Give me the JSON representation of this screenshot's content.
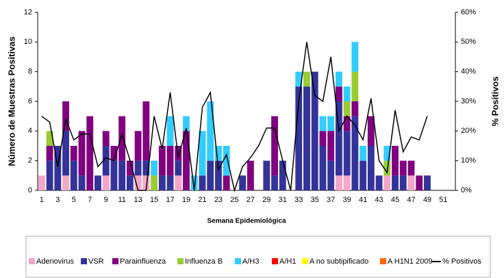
{
  "chart_data": {
    "type": "bar",
    "x_label": "Semana Epidemiológica",
    "y_label": "Número de Muestras Positivas",
    "y2_label": "% Positivos",
    "categories": [
      1,
      null,
      3,
      null,
      5,
      null,
      7,
      null,
      9,
      null,
      11,
      null,
      13,
      null,
      15,
      null,
      17,
      null,
      19,
      null,
      21,
      null,
      23,
      null,
      25,
      null,
      27,
      null,
      29,
      null,
      31,
      null,
      33,
      null,
      35,
      null,
      37,
      null,
      39,
      null,
      41,
      null,
      43,
      null,
      45,
      null,
      47,
      null,
      49,
      null,
      51,
      null
    ],
    "ylim": [
      0,
      12
    ],
    "yticks": [
      0,
      2,
      4,
      6,
      8,
      10,
      12
    ],
    "y2lim": [
      0,
      60
    ],
    "y2ticks": [
      {
        "value": 0,
        "label": "0%"
      },
      {
        "value": 10,
        "label": "10%"
      },
      {
        "value": 20,
        "label": "20%"
      },
      {
        "value": 30,
        "label": "30%"
      },
      {
        "value": 40,
        "label": "40%"
      },
      {
        "value": 50,
        "label": "50%"
      },
      {
        "value": 60,
        "label": "60%"
      }
    ],
    "legend": "bottom",
    "series": [
      {
        "name": "Adenovirus",
        "color": "#f4a6c8",
        "values": [
          1,
          0,
          0,
          1,
          0,
          0,
          0,
          0,
          1,
          0,
          0,
          0,
          1,
          1,
          0,
          0,
          0,
          1,
          0,
          0,
          0,
          0,
          0,
          0,
          0,
          0,
          0,
          0,
          0,
          0,
          0,
          0,
          0,
          0,
          0,
          0,
          0,
          1,
          1,
          0,
          0,
          0,
          0,
          1,
          0,
          0,
          1,
          0,
          0,
          0,
          0,
          0
        ]
      },
      {
        "name": "VSR",
        "color": "#33339a",
        "values": [
          0,
          2,
          3,
          3,
          2,
          1,
          0,
          1,
          2,
          2,
          2,
          1,
          1,
          1,
          0,
          1,
          1,
          1,
          0,
          0,
          1,
          2,
          2,
          0,
          0,
          1,
          0,
          0,
          2,
          1,
          2,
          0,
          7,
          7,
          8,
          3,
          2,
          5,
          3,
          5,
          2,
          3,
          1,
          0,
          1,
          1,
          0,
          0,
          1,
          0,
          0,
          0
        ]
      },
      {
        "name": "Parainfluenza",
        "color": "#800080",
        "values": [
          0,
          1,
          0,
          2,
          1,
          3,
          5,
          0,
          1,
          1,
          3,
          1,
          2,
          4,
          0,
          2,
          2,
          1,
          4,
          0,
          0,
          0,
          0,
          1,
          0,
          0,
          2,
          0,
          0,
          4,
          0,
          0,
          0,
          0,
          0,
          1,
          2,
          1,
          1,
          1,
          0,
          2,
          0,
          0,
          2,
          1,
          1,
          1,
          0,
          0,
          0,
          0
        ]
      },
      {
        "name": "Influenza  B",
        "color": "#99cc33",
        "values": [
          0,
          1,
          0,
          0,
          0,
          0,
          0,
          0,
          0,
          0,
          0,
          0,
          0,
          0,
          1,
          0,
          0,
          0,
          0,
          0,
          0,
          0,
          0,
          0,
          0,
          0,
          0,
          0,
          0,
          0,
          0,
          0,
          0,
          1,
          0,
          0,
          0,
          0,
          1,
          2,
          0,
          0,
          0,
          1,
          0,
          0,
          0,
          0,
          0,
          0,
          0,
          0
        ]
      },
      {
        "name": "A/H3",
        "color": "#33ccff",
        "values": [
          0,
          0,
          0,
          0,
          0,
          0,
          0,
          0,
          0,
          0,
          0,
          0,
          0,
          0,
          1,
          0,
          2,
          0,
          1,
          1,
          3,
          4,
          1,
          2,
          0,
          0,
          0,
          0,
          0,
          0,
          0,
          0,
          1,
          0,
          0,
          1,
          1,
          1,
          1,
          2,
          1,
          0,
          0,
          1,
          0,
          0,
          0,
          0,
          0,
          0,
          0,
          0
        ]
      },
      {
        "name": "A/H1",
        "color": "#ff0000",
        "values": [
          0,
          0,
          0,
          0,
          0,
          0,
          0,
          0,
          0,
          0,
          0,
          0,
          0,
          0,
          0,
          0,
          0,
          0,
          0,
          0,
          0,
          0,
          0,
          0,
          0,
          0,
          0,
          0,
          0,
          0,
          0,
          0,
          0,
          0,
          0,
          0,
          0,
          0,
          0,
          0,
          0,
          0,
          0,
          0,
          0,
          0,
          0,
          0,
          0,
          0,
          0,
          0
        ]
      },
      {
        "name": "A no subtipificado",
        "color": "#ffff00",
        "values": [
          0,
          0,
          0,
          0,
          0,
          0,
          0,
          0,
          0,
          0,
          0,
          0,
          0,
          0,
          0,
          0,
          0,
          0,
          0,
          0,
          0,
          0,
          0,
          0,
          0,
          0,
          0,
          0,
          0,
          0,
          0,
          0,
          0,
          0,
          0,
          0,
          0,
          0,
          0,
          0,
          0,
          0,
          0,
          0,
          0,
          0,
          0,
          0,
          0,
          0,
          0,
          0
        ]
      },
      {
        "name": "A H1N1 2009",
        "color": "#ff6600",
        "values": [
          0,
          0,
          0,
          0,
          0,
          0,
          0,
          0,
          0,
          0,
          0,
          0,
          0,
          0,
          0,
          0,
          0,
          0,
          0,
          0,
          0,
          0,
          0,
          0,
          0,
          0,
          0,
          0,
          0,
          0,
          0,
          0,
          0,
          0,
          0,
          0,
          0,
          0,
          0,
          0,
          0,
          0,
          0,
          0,
          0,
          0,
          0,
          0,
          0,
          0,
          0,
          0
        ]
      },
      {
        "name": "% Positivos",
        "color": "#000000",
        "type": "line",
        "axis": "y2",
        "values": [
          25,
          23,
          8,
          24,
          17,
          19,
          19,
          8,
          11,
          10,
          19,
          10,
          0,
          0,
          25,
          14,
          33,
          11,
          21,
          0,
          28,
          33,
          7,
          12,
          0,
          8,
          11,
          15,
          21,
          21,
          10,
          0,
          30,
          50,
          32,
          30,
          45,
          20,
          25,
          22,
          17,
          31,
          10,
          6,
          27,
          13,
          18,
          17,
          25,
          null,
          null,
          null
        ]
      }
    ]
  }
}
